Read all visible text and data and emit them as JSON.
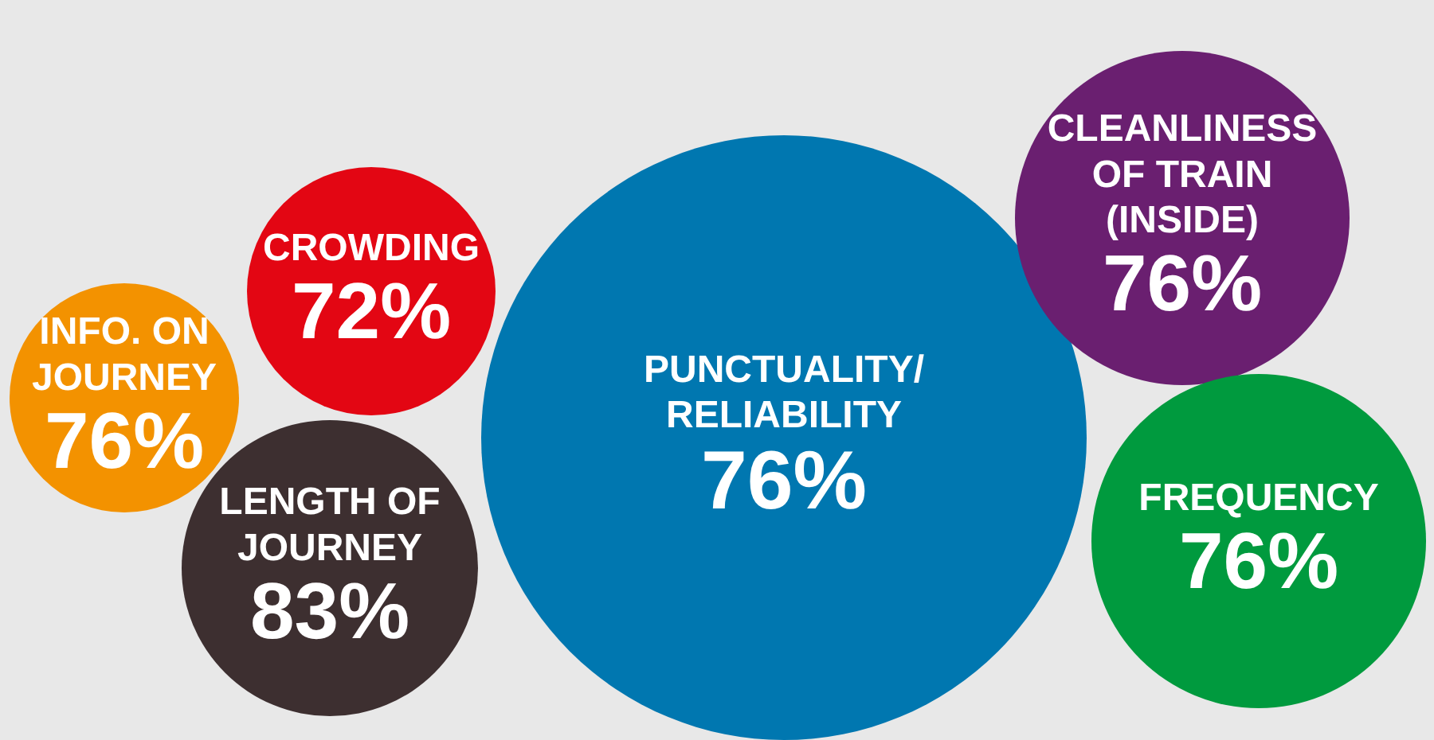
{
  "chart_data": {
    "type": "other",
    "categories": [
      "INFO. ON JOURNEY",
      "CROWDING",
      "LENGTH OF JOURNEY",
      "PUNCTUALITY/ RELIABILITY",
      "CLEANLINESS OF TRAIN (INSIDE)",
      "FREQUENCY"
    ],
    "values": [
      76,
      72,
      83,
      76,
      76,
      76
    ],
    "value_labels": [
      "76%",
      "72%",
      "83%",
      "76%",
      "76%",
      "76%"
    ],
    "colors": [
      "#f39200",
      "#e30613",
      "#3d2f30",
      "#0077b0",
      "#6a1f70",
      "#009a3e"
    ]
  }
}
